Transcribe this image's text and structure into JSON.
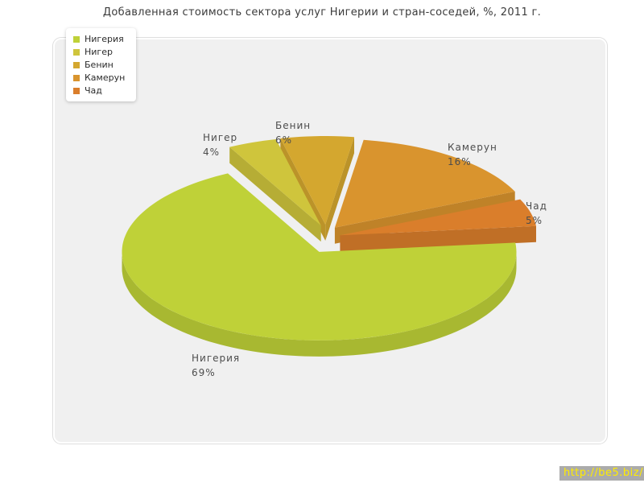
{
  "title": "Добавленная стоимость сектора услуг Нигерии и стран-соседей, %, 2011 г.",
  "watermark": "http://be5.biz/",
  "chart_data": {
    "type": "pie",
    "style": "3d-exploded",
    "title": "Добавленная стоимость сектора услуг Нигерии и стран-соседей, %, 2011 г.",
    "unit": "%",
    "year": "2011",
    "labels": [
      "Нигерия",
      "Нигер",
      "Бенин",
      "Камерун",
      "Чад"
    ],
    "values": [
      69,
      4,
      6,
      16,
      5
    ],
    "slice_label_format": "name + percent",
    "slice_labels": [
      "Нигерия 69%",
      "Нигер 4%",
      "Бенин 6%",
      "Камерун 16%",
      "Чад 5%"
    ],
    "colors": [
      "#bfd138",
      "#cfc53c",
      "#d4a72f",
      "#d9942e",
      "#da7e2b"
    ],
    "legend_position": "top-left",
    "legend_entries": [
      "Нигерия",
      "Нигер",
      "Бенин",
      "Камерун",
      "Чад"
    ]
  }
}
